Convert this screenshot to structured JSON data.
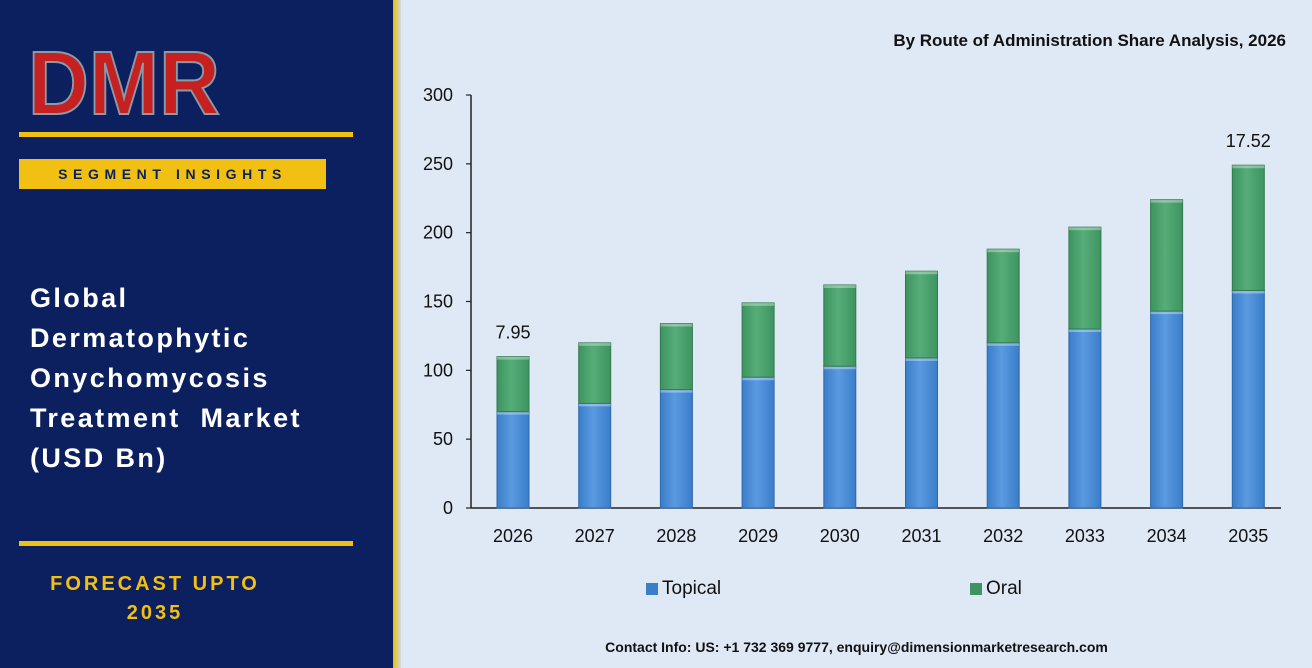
{
  "brand": {
    "logo_text": "DMR"
  },
  "sidebar": {
    "segment_label": "SEGMENT INSIGHTS",
    "title_lines": [
      "Global",
      "Dermatophytic",
      "Onychomycosis",
      "Treatment  Market",
      "(USD Bn)"
    ],
    "forecast_lines": [
      "FORECAST UPTO",
      "2035"
    ]
  },
  "chart_title": "By Route of Administration Share Analysis, 2026",
  "contact": "Contact Info: US: +1 732 369 9777, enquiry@dimensionmarketresearch.com",
  "colors": {
    "topical": "#3a7dc9",
    "oral": "#3e9460",
    "sidebar_bg": "#0c1f5e",
    "accent": "#f2c012"
  },
  "chart_data": {
    "type": "bar",
    "stacked": true,
    "categories": [
      "2026",
      "2027",
      "2028",
      "2029",
      "2030",
      "2031",
      "2032",
      "2033",
      "2034",
      "2035"
    ],
    "series": [
      {
        "name": "Topical",
        "values": [
          70,
          76,
          86,
          95,
          103,
          109,
          120,
          130,
          143,
          158
        ]
      },
      {
        "name": "Oral",
        "values": [
          40,
          44,
          48,
          54,
          59,
          63,
          68,
          74,
          81,
          91
        ]
      }
    ],
    "ylim": [
      0,
      300
    ],
    "yticks": [
      0,
      50,
      100,
      150,
      200,
      250,
      300
    ],
    "annotations": [
      {
        "category": "2026",
        "text": "7.95"
      },
      {
        "category": "2035",
        "text": "17.52"
      }
    ],
    "legend": "bottom",
    "grid": false
  }
}
